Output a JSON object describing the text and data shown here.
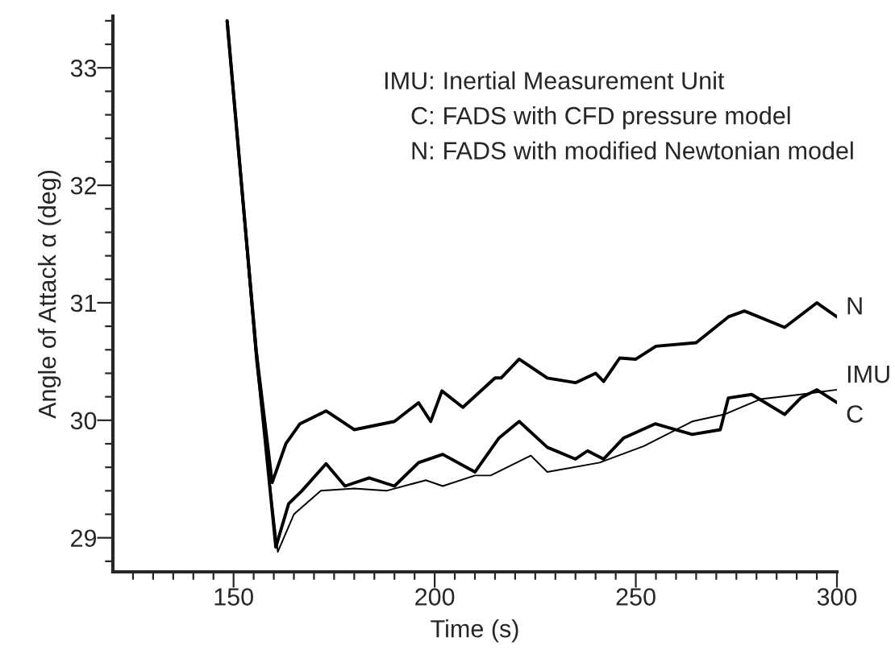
{
  "chart_data": {
    "type": "line",
    "xlabel": "Time (s)",
    "ylabel": "Angle of Attack α (deg)",
    "xlim": [
      120,
      300
    ],
    "ylim": [
      28.71,
      33.44
    ],
    "xticks": [
      {
        "value": 125,
        "label": null
      },
      {
        "value": 130,
        "label": null
      },
      {
        "value": 135,
        "label": null
      },
      {
        "value": 140,
        "label": null
      },
      {
        "value": 145,
        "label": null
      },
      150,
      {
        "value": 155,
        "label": null
      },
      {
        "value": 160,
        "label": null
      },
      {
        "value": 165,
        "label": null
      },
      {
        "value": 170,
        "label": null
      },
      {
        "value": 175,
        "label": null
      },
      {
        "value": 180,
        "label": null
      },
      {
        "value": 185,
        "label": null
      },
      {
        "value": 190,
        "label": null
      },
      {
        "value": 195,
        "label": null
      },
      200,
      {
        "value": 205,
        "label": null
      },
      {
        "value": 210,
        "label": null
      },
      {
        "value": 215,
        "label": null
      },
      {
        "value": 220,
        "label": null
      },
      {
        "value": 225,
        "label": null
      },
      {
        "value": 230,
        "label": null
      },
      {
        "value": 235,
        "label": null
      },
      {
        "value": 240,
        "label": null
      },
      {
        "value": 245,
        "label": null
      },
      250,
      {
        "value": 255,
        "label": null
      },
      {
        "value": 260,
        "label": null
      },
      {
        "value": 265,
        "label": null
      },
      {
        "value": 270,
        "label": null
      },
      {
        "value": 275,
        "label": null
      },
      {
        "value": 280,
        "label": null
      },
      {
        "value": 285,
        "label": null
      },
      {
        "value": 290,
        "label": null
      },
      {
        "value": 295,
        "label": null
      },
      300
    ],
    "yticks": [
      {
        "value": 28.8,
        "label": null
      },
      29,
      {
        "value": 29.2,
        "label": null
      },
      {
        "value": 29.4,
        "label": null
      },
      {
        "value": 29.6,
        "label": null
      },
      {
        "value": 29.8,
        "label": null
      },
      30,
      {
        "value": 30.2,
        "label": null
      },
      {
        "value": 30.4,
        "label": null
      },
      {
        "value": 30.6,
        "label": null
      },
      {
        "value": 30.8,
        "label": null
      },
      31,
      {
        "value": 31.2,
        "label": null
      },
      {
        "value": 31.4,
        "label": null
      },
      {
        "value": 31.6,
        "label": null
      },
      {
        "value": 31.8,
        "label": null
      },
      32,
      {
        "value": 32.2,
        "label": null
      },
      {
        "value": 32.4,
        "label": null
      },
      {
        "value": 32.6,
        "label": null
      },
      {
        "value": 32.8,
        "label": null
      },
      33,
      {
        "value": 33.2,
        "label": null
      },
      {
        "value": 33.4,
        "label": null
      }
    ],
    "grid": false,
    "legend": false,
    "marker": "none",
    "line_style": "solid",
    "series": [
      {
        "name": "C",
        "color": "#000000",
        "x": [
          148.4,
          155.6,
          160.5,
          163.7,
          167,
          173,
          177.7,
          183.7,
          190,
          196,
          202,
          210,
          216,
          221,
          228,
          235,
          238,
          242,
          247,
          254.8,
          264,
          271,
          273,
          278.8,
          287,
          291,
          295,
          300
        ],
        "values": [
          33.4,
          30.6,
          28.92,
          29.29,
          29.4,
          29.63,
          29.44,
          29.51,
          29.44,
          29.64,
          29.71,
          29.56,
          29.85,
          29.99,
          29.77,
          29.67,
          29.74,
          29.67,
          29.85,
          29.97,
          29.88,
          29.92,
          30.19,
          30.22,
          30.05,
          30.19,
          30.26,
          30.15
        ]
      },
      {
        "name": "N",
        "color": "#000000",
        "x": [
          148.4,
          155.6,
          159.6,
          163,
          166.5,
          173,
          180,
          190,
          196,
          199,
          201.8,
          207,
          215,
          216.5,
          221,
          228,
          235,
          240,
          242,
          246,
          250,
          255,
          265,
          273,
          277,
          287,
          295,
          300
        ],
        "values": [
          33.4,
          30.6,
          29.47,
          29.8,
          29.97,
          30.08,
          29.92,
          29.99,
          30.15,
          29.99,
          30.25,
          30.11,
          30.36,
          30.36,
          30.52,
          30.36,
          30.32,
          30.4,
          30.33,
          30.53,
          30.52,
          30.63,
          30.66,
          30.88,
          30.93,
          30.79,
          31.0,
          30.88
        ]
      },
      {
        "name": "IMU",
        "color": "#000000",
        "x": [
          148.4,
          155.6,
          161,
          165,
          171.7,
          180,
          188,
          197.8,
          202,
          210,
          213.9,
          223.9,
          228,
          241,
          252,
          264,
          272,
          281,
          291,
          300
        ],
        "values": [
          33.4,
          30.5,
          28.88,
          29.2,
          29.4,
          29.42,
          29.4,
          29.49,
          29.44,
          29.53,
          29.53,
          29.7,
          29.56,
          29.64,
          29.78,
          29.99,
          30.05,
          30.18,
          30.22,
          30.26
        ]
      }
    ],
    "annotations": [
      "IMU:  Inertial Measurement Unit",
      "C:  FADS with CFD pressure model",
      "N:  FADS with modified Newtonian model"
    ]
  }
}
